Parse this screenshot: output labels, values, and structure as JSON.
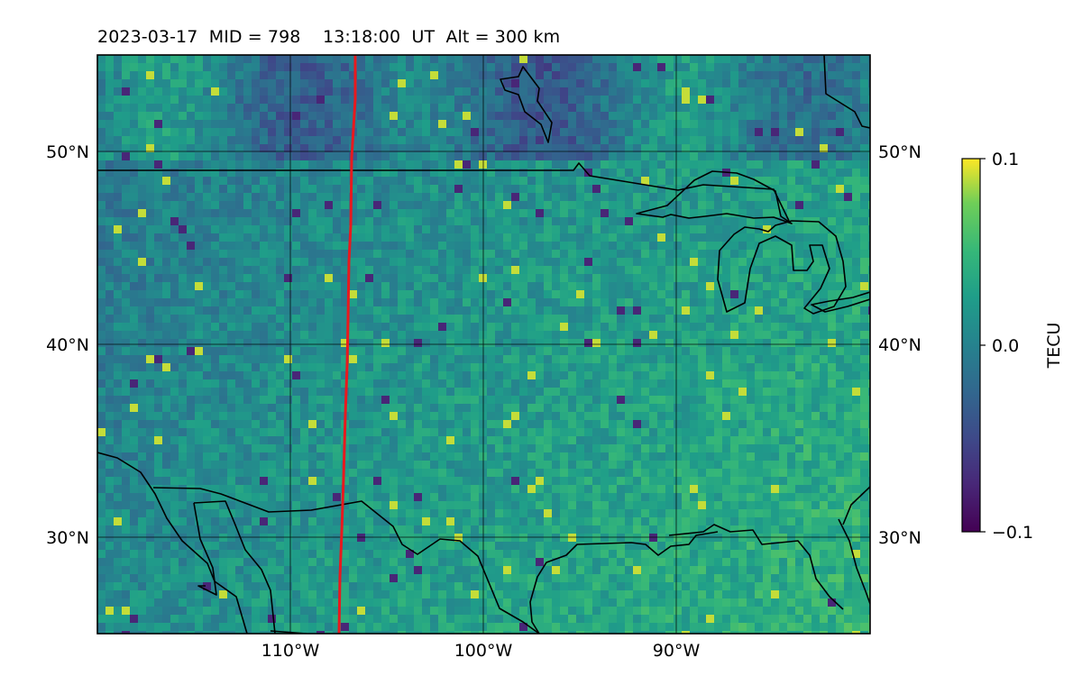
{
  "header": {
    "title": "2023-03-17  MID = 798    13:18:00  UT  Alt = 300 km"
  },
  "map": {
    "lon_range": [
      -120,
      -80
    ],
    "lat_range": [
      25,
      55
    ],
    "lon_ticks": [
      "110°W",
      "100°W",
      "90°W"
    ],
    "lat_ticks": [
      "50°N",
      "40°N",
      "30°N"
    ],
    "lat_ticks_right": [
      "50°N",
      "40°N",
      "30°N"
    ],
    "track_color": "#e8191e",
    "coast_color": "#000000"
  },
  "colorbar": {
    "label": "TECU",
    "ticks": [
      "0.1",
      "0.0",
      "−0.1"
    ],
    "min": -0.1,
    "max": 0.1,
    "colormap": "viridis"
  }
}
